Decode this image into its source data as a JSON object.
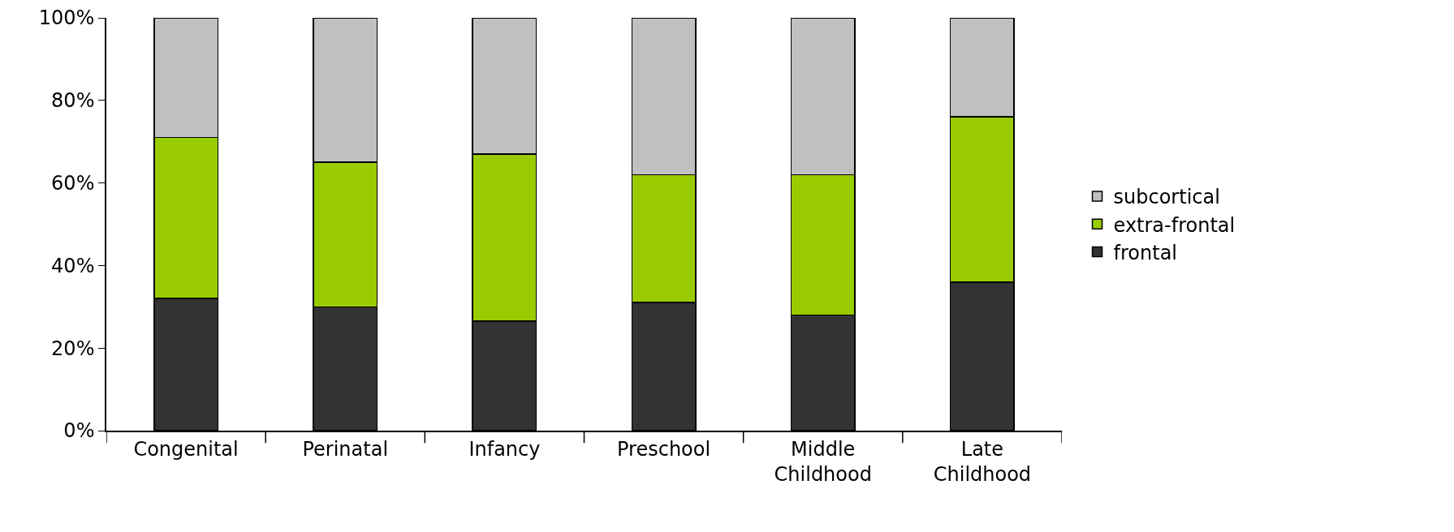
{
  "chart_data": {
    "type": "bar",
    "stacked": true,
    "categories": [
      "Congenital",
      "Perinatal",
      "Infancy",
      "Preschool",
      "Middle\nChildhood",
      "Late\nChildhood"
    ],
    "series": [
      {
        "name": "frontal",
        "color": "#333333",
        "values": [
          32,
          30,
          26.5,
          31,
          28,
          36
        ]
      },
      {
        "name": "extra-frontal",
        "color": "#99cc00",
        "values": [
          39,
          35,
          40.5,
          31,
          34,
          40
        ]
      },
      {
        "name": "subcortical",
        "color": "#c0c0c0",
        "values": [
          29,
          35,
          33,
          38,
          38,
          24
        ]
      }
    ],
    "ylim": [
      0,
      100
    ],
    "yticks": [
      {
        "value": 0,
        "label": "0%"
      },
      {
        "value": 20,
        "label": "20%"
      },
      {
        "value": 40,
        "label": "40%"
      },
      {
        "value": 60,
        "label": "60%"
      },
      {
        "value": 80,
        "label": "80%"
      },
      {
        "value": 100,
        "label": "100%"
      }
    ],
    "grid": false,
    "legend": "right"
  }
}
